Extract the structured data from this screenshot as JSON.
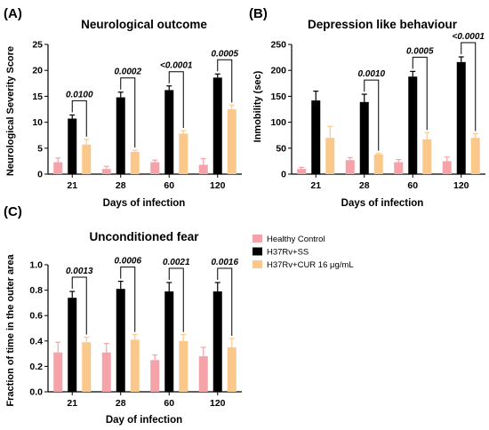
{
  "legend": [
    {
      "name": "Healthy Control",
      "color": "#f4a3a8"
    },
    {
      "name": "H37Rv+SS",
      "color": "#000000"
    },
    {
      "name": "H37Rv+CUR 16 μg/mL",
      "color": "#fbc88c"
    }
  ],
  "chart_data": [
    {
      "type": "bar",
      "panel_label": "(A)",
      "title": "Neurological outcome",
      "xlabel": "Days of infection",
      "ylabel": "Neurological Severity Score",
      "categories": [
        "21",
        "28",
        "60",
        "120"
      ],
      "ylim": [
        0,
        25
      ],
      "yticks": [
        0,
        5,
        10,
        15,
        20,
        25
      ],
      "series": [
        {
          "name": "Healthy Control",
          "color": "#f4a3a8",
          "values": [
            2.3,
            1.0,
            2.3,
            1.8
          ],
          "errors": [
            0.8,
            0.5,
            0.4,
            1.2
          ]
        },
        {
          "name": "H37Rv+SS",
          "color": "#000000",
          "values": [
            10.7,
            14.8,
            16.2,
            18.6
          ],
          "errors": [
            0.7,
            1.0,
            0.8,
            0.7
          ]
        },
        {
          "name": "H37Rv+CUR 16 μg/mL",
          "color": "#fbc88c",
          "values": [
            5.7,
            4.3,
            7.8,
            12.5
          ],
          "errors": [
            1.0,
            0.3,
            0.6,
            0.8
          ]
        }
      ],
      "annotations": [
        "0.0100",
        "0.0002",
        "<0.0001",
        "0.0005"
      ]
    },
    {
      "type": "bar",
      "panel_label": "(B)",
      "title": "Depression like behaviour",
      "xlabel": "Days of infection",
      "ylabel": "Inmobility (sec)",
      "categories": [
        "21",
        "28",
        "60",
        "120"
      ],
      "ylim": [
        0,
        250
      ],
      "yticks": [
        0,
        50,
        100,
        150,
        200,
        250
      ],
      "series": [
        {
          "name": "Healthy Control",
          "color": "#f4a3a8",
          "values": [
            10,
            27,
            23,
            25
          ],
          "errors": [
            3,
            5,
            5,
            8
          ]
        },
        {
          "name": "H37Rv+SS",
          "color": "#000000",
          "values": [
            142,
            139,
            188,
            216
          ],
          "errors": [
            18,
            15,
            10,
            10
          ]
        },
        {
          "name": "H37Rv+CUR 16 μg/mL",
          "color": "#fbc88c",
          "values": [
            70,
            38,
            67,
            70
          ],
          "errors": [
            22,
            2,
            13,
            8
          ]
        }
      ],
      "annotations": [
        "",
        "0.0010",
        "0.0005",
        "<0.0001"
      ]
    },
    {
      "type": "bar",
      "panel_label": "(C)",
      "title": "Unconditioned fear",
      "xlabel": "Day of infection",
      "ylabel": "Fraction of time in the outer area",
      "categories": [
        "21",
        "28",
        "60",
        "120"
      ],
      "ylim": [
        0,
        1.0
      ],
      "yticks": [
        "0.0",
        "0.2",
        "0.4",
        "0.6",
        "0.8",
        "1.0"
      ],
      "series": [
        {
          "name": "Healthy Control",
          "color": "#f4a3a8",
          "values": [
            0.31,
            0.31,
            0.25,
            0.28
          ],
          "errors": [
            0.08,
            0.07,
            0.04,
            0.07
          ]
        },
        {
          "name": "H37Rv+SS",
          "color": "#000000",
          "values": [
            0.74,
            0.81,
            0.79,
            0.79
          ],
          "errors": [
            0.05,
            0.06,
            0.07,
            0.07
          ]
        },
        {
          "name": "H37Rv+CUR 16 μg/mL",
          "color": "#fbc88c",
          "values": [
            0.39,
            0.41,
            0.4,
            0.35
          ],
          "errors": [
            0.04,
            0.04,
            0.05,
            0.07
          ]
        }
      ],
      "annotations": [
        "0.0013",
        "0.0006",
        "0.0021",
        "0.0016"
      ]
    }
  ]
}
